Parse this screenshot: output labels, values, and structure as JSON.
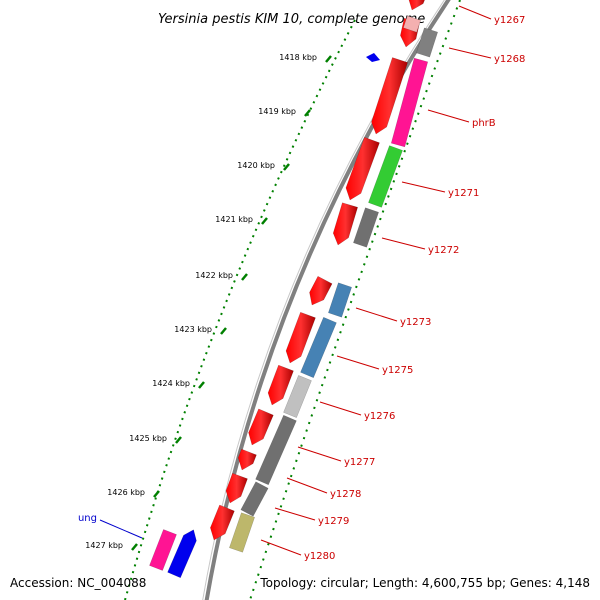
{
  "title": "Yersinia pestis KIM 10, complete genome",
  "accession": "Accession: NC_004088",
  "topology": "Topology: circular; Length: 4,600,755 bp; Genes: 4,148",
  "colors": {
    "backbone": "#808080",
    "tick": "#008000",
    "label_forward": "#cc0000",
    "label_reverse": "#0000cc"
  },
  "kbp_ticks": [
    "1418 kbp",
    "1419 kbp",
    "1420 kbp",
    "1421 kbp",
    "1422 kbp",
    "1423 kbp",
    "1424 kbp",
    "1425 kbp",
    "1426 kbp",
    "1427 kbp"
  ],
  "genes": [
    {
      "label": "y1267",
      "color": "#ff0000"
    },
    {
      "label": "y1268",
      "color": "#808080"
    },
    {
      "label": "phrB",
      "color": "#ff1493"
    },
    {
      "label": "y1271",
      "color": "#33cc33"
    },
    {
      "label": "y1272",
      "color": "#707070"
    },
    {
      "label": "y1273",
      "color": "#4682b4"
    },
    {
      "label": "y1275",
      "color": "#4682b4"
    },
    {
      "label": "y1276",
      "color": "#c0c0c0"
    },
    {
      "label": "y1277",
      "color": "#707070"
    },
    {
      "label": "y1278",
      "color": "#707070"
    },
    {
      "label": "y1279",
      "color": "#707070"
    },
    {
      "label": "y1280",
      "color": "#bdb76b"
    },
    {
      "label": "ung",
      "color": "#ff1493"
    }
  ]
}
